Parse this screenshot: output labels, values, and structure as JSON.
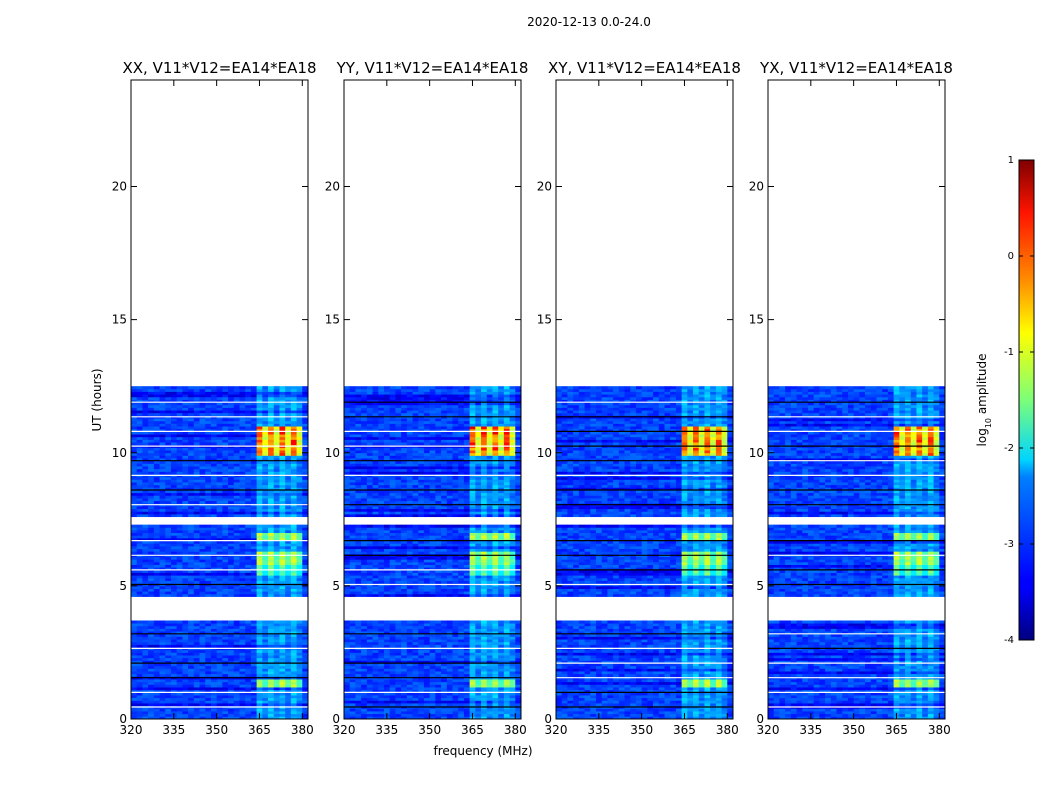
{
  "chart_data": {
    "type": "heatmap",
    "title": "2020-12-13 0.0-24.0",
    "xlabel": "frequency (MHz)",
    "ylabel": "UT (hours)",
    "xlim": [
      320,
      382
    ],
    "ylim": [
      0,
      24
    ],
    "xticks": [
      320,
      335,
      350,
      365,
      380
    ],
    "yticks": [
      0,
      5,
      10,
      15,
      20
    ],
    "data_coverage_hours": [
      [
        0,
        3.7
      ],
      [
        4.6,
        7.3
      ],
      [
        7.6,
        12.5
      ]
    ],
    "bright_band_mhz": [
      363,
      380
    ],
    "panels": [
      {
        "title": "XX, V11*V12=EA14*EA18",
        "peak_hours": [
          10.0,
          11.0
        ],
        "peak_log_amplitude": 0.4
      },
      {
        "title": "YY, V11*V12=EA14*EA18",
        "peak_hours": [
          10.0,
          11.0
        ],
        "peak_log_amplitude": 0.5
      },
      {
        "title": "XY, V11*V12=EA14*EA18",
        "peak_hours": [
          10.0,
          11.0
        ],
        "peak_log_amplitude": 0.3
      },
      {
        "title": "YX, V11*V12=EA14*EA18",
        "peak_hours": [
          10.0,
          11.0
        ],
        "peak_log_amplitude": 0.4
      }
    ],
    "colorbar": {
      "label": "log10 amplitude",
      "label_base": "log",
      "label_sub": "10",
      "label_rest": " amplitude",
      "range": [
        -4,
        1
      ],
      "ticks": [
        1,
        0,
        -1,
        -2,
        -3,
        -4
      ]
    }
  }
}
